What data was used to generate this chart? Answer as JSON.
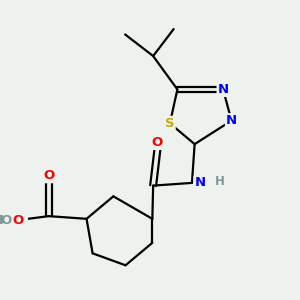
{
  "bg_color": "#eef2ee",
  "bond_color": "#000000",
  "bond_width": 1.6,
  "atom_colors": {
    "N": "#0000ff",
    "O": "#ff0000",
    "S": "#ccaa00",
    "C": "#000000",
    "H": "#7a9a9a"
  },
  "font_size": 9.5
}
